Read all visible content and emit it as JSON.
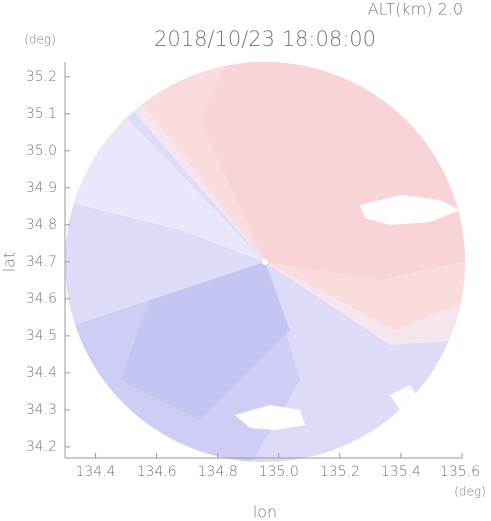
{
  "chart_data": {
    "type": "radar",
    "title": "2018/10/23 18:08:00",
    "subtitle": "ALT(km) 2.0",
    "x_label": "lon",
    "y_label": "lat",
    "x_unit": "(deg)",
    "y_unit": "(deg)",
    "xlim": [
      134.3,
      135.6
    ],
    "xticks": [
      134.4,
      134.6,
      134.8,
      {
        "value": 135,
        "label": "135.0"
      },
      135.2,
      135.4,
      135.6
    ],
    "ylim": [
      34.17,
      35.24
    ],
    "yticks": [
      34.2,
      34.3,
      34.4,
      34.5,
      34.6,
      34.7,
      34.8,
      34.9,
      {
        "value": 35,
        "label": "35.0"
      },
      35.1,
      35.2
    ],
    "grid": false
  }
}
